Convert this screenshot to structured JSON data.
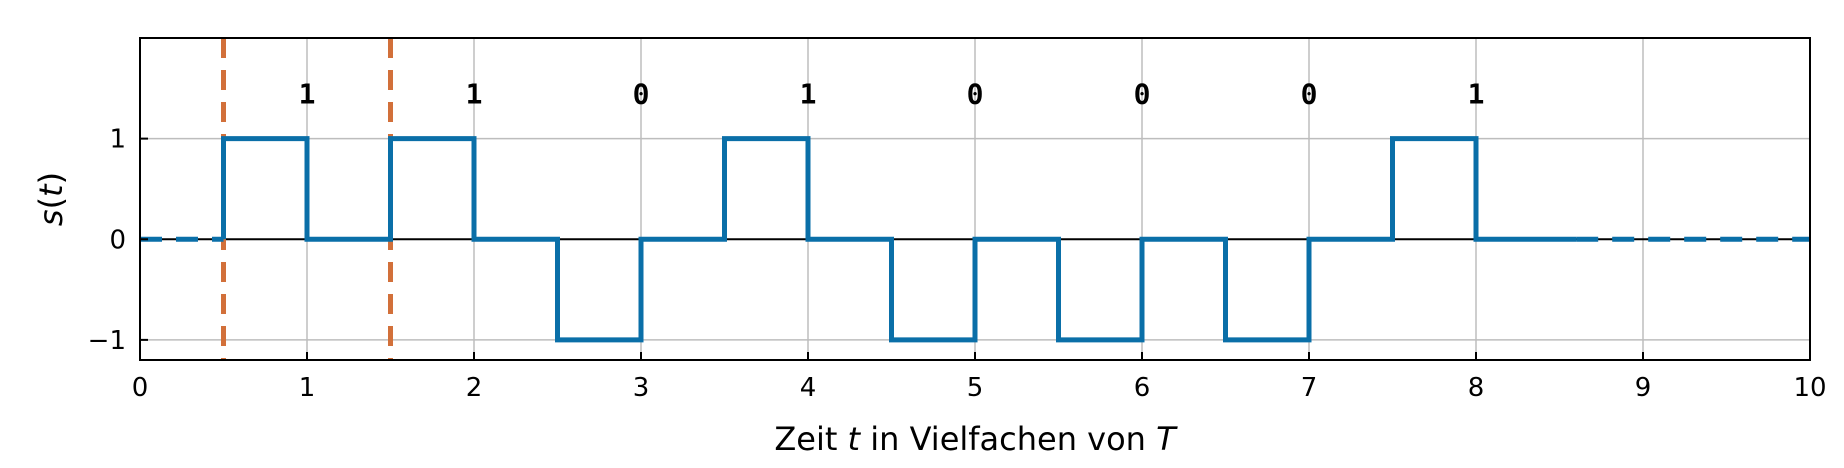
{
  "chart_data": {
    "type": "line",
    "xlim": [
      0,
      10
    ],
    "ylim": [
      -1.2,
      2.0
    ],
    "xticks": [
      0,
      1,
      2,
      3,
      4,
      5,
      6,
      7,
      8,
      9,
      10
    ],
    "yticks": [
      -1,
      0,
      1
    ],
    "ytick_labels": [
      "−1",
      "0",
      "1"
    ],
    "grid": true,
    "xlabel_parts": [
      "Zeit ",
      "t",
      " in Vielfachen von ",
      "T"
    ],
    "ylabel_parts": [
      "s(",
      "t",
      ")"
    ],
    "bits": [
      {
        "x": 1,
        "label": "1"
      },
      {
        "x": 2,
        "label": "1"
      },
      {
        "x": 3,
        "label": "0"
      },
      {
        "x": 4,
        "label": "1"
      },
      {
        "x": 5,
        "label": "0"
      },
      {
        "x": 6,
        "label": "0"
      },
      {
        "x": 7,
        "label": "0"
      },
      {
        "x": 8,
        "label": "1"
      }
    ],
    "bit_label_y": 1.45,
    "signal": {
      "color": "#0a6fa8",
      "solid_x": [
        0.5,
        0.5,
        1,
        1,
        1.5,
        1.5,
        2,
        2,
        2.5,
        2.5,
        3,
        3,
        3.5,
        3.5,
        4,
        4,
        4.5,
        4.5,
        5,
        5,
        5.5,
        5.5,
        6,
        6,
        6.5,
        6.5,
        7,
        7,
        7.5,
        7.5,
        8,
        8,
        8.6
      ],
      "solid_y": [
        0,
        1,
        1,
        0,
        0,
        1,
        1,
        0,
        0,
        -1,
        -1,
        0,
        0,
        1,
        1,
        0,
        0,
        -1,
        -1,
        0,
        0,
        -1,
        -1,
        0,
        0,
        -1,
        -1,
        0,
        0,
        1,
        1,
        0,
        0
      ],
      "dashed_segments": [
        {
          "x": [
            0,
            0.5
          ],
          "y": [
            0,
            0
          ]
        },
        {
          "x": [
            8.6,
            10
          ],
          "y": [
            0,
            0
          ]
        }
      ]
    },
    "markers": {
      "color": "#d2703a",
      "x": [
        0.5,
        1.5
      ]
    }
  }
}
